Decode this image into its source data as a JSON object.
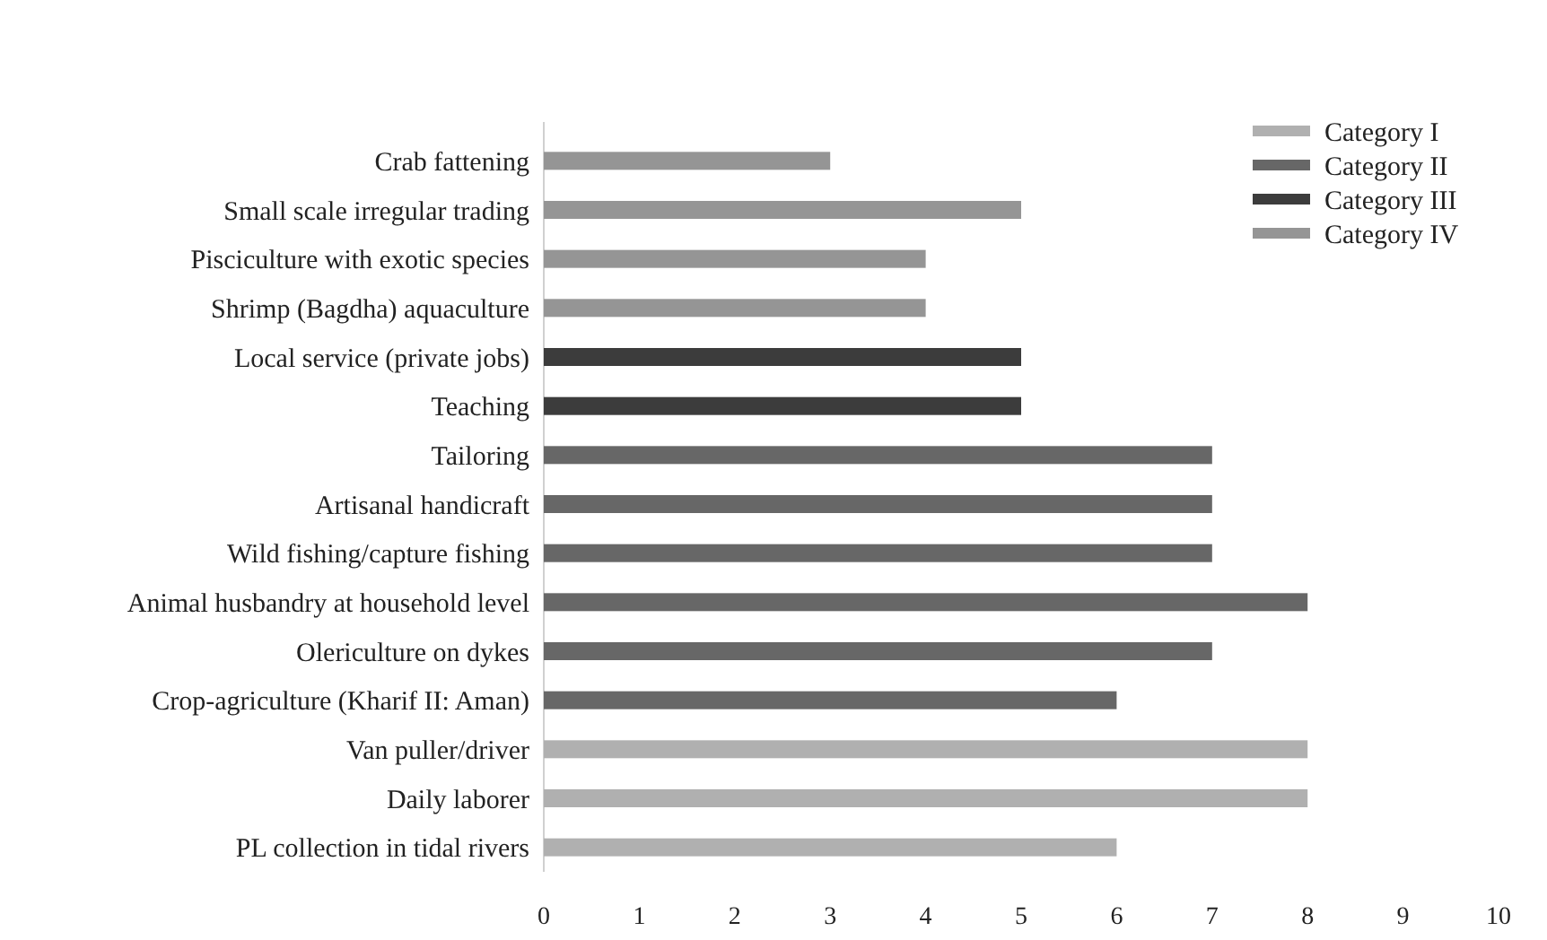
{
  "chart_data": {
    "type": "bar",
    "orientation": "horizontal",
    "stacked": true,
    "categories": [
      "Crab fattening",
      "Small scale irregular trading",
      "Pisciculture with exotic species",
      "Shrimp (Bagdha) aquaculture",
      "Local service (private jobs)",
      "Teaching",
      "Tailoring",
      "Artisanal handicraft",
      "Wild fishing/capture fishing",
      "Animal husbandry at household level",
      "Olericulture on dykes",
      "Crop-agriculture (Kharif II: Aman)",
      "Van puller/driver",
      "Daily laborer",
      "PL collection in tidal rivers"
    ],
    "series": [
      {
        "name": "Category I",
        "color": "#b0b0b0",
        "values": [
          null,
          null,
          null,
          null,
          null,
          null,
          null,
          null,
          null,
          null,
          null,
          null,
          8,
          8,
          6
        ]
      },
      {
        "name": "Category II",
        "color": "#676767",
        "values": [
          null,
          null,
          null,
          null,
          null,
          null,
          7,
          7,
          7,
          8,
          7,
          6,
          null,
          null,
          null
        ]
      },
      {
        "name": "Category III",
        "color": "#3c3c3c",
        "values": [
          null,
          null,
          null,
          null,
          5,
          5,
          null,
          null,
          null,
          null,
          null,
          null,
          null,
          null,
          null
        ]
      },
      {
        "name": "Category IV",
        "color": "#959595",
        "values": [
          3,
          5,
          4,
          4,
          null,
          null,
          null,
          null,
          null,
          null,
          null,
          null,
          null,
          null,
          null
        ]
      }
    ],
    "xlim": [
      0,
      10
    ],
    "xticks": [
      0,
      1,
      2,
      3,
      4,
      5,
      6,
      7,
      8,
      9,
      10
    ],
    "grid": false,
    "legend": "top right"
  }
}
